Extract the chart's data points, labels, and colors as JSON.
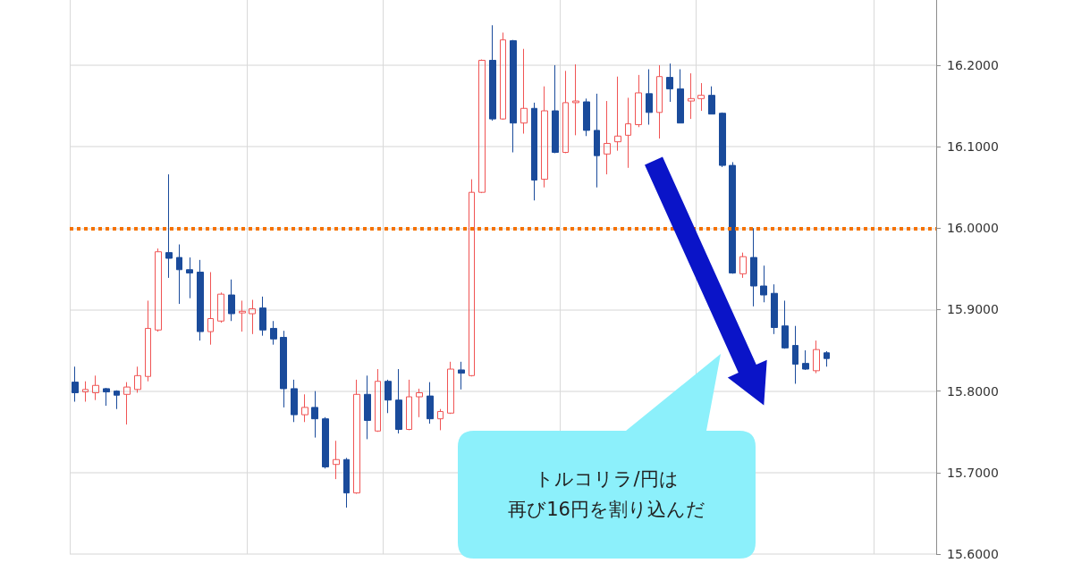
{
  "chart_data": {
    "type": "candlestick",
    "categories": [
      null,
      null,
      null,
      null,
      null,
      null,
      null,
      null,
      null,
      null,
      null,
      null,
      null,
      null,
      null,
      null,
      null,
      null,
      null,
      null,
      null,
      null,
      null,
      null,
      null,
      null,
      null,
      null,
      null,
      null,
      null,
      null,
      null,
      null,
      null,
      null,
      null,
      null,
      null,
      null,
      null,
      null,
      null,
      null,
      null,
      null,
      null,
      null,
      null,
      null,
      null,
      null,
      null,
      null,
      null,
      null,
      null,
      null,
      null,
      null,
      null,
      null,
      null,
      null,
      null,
      null,
      null,
      null,
      null,
      null,
      null,
      null,
      null,
      null,
      null,
      null,
      null,
      null,
      null,
      null,
      null,
      null,
      null
    ],
    "ohlc": [
      [
        15.811,
        15.83,
        15.787,
        15.798
      ],
      [
        15.799,
        15.812,
        15.787,
        15.802
      ],
      [
        15.798,
        15.819,
        15.789,
        15.807
      ],
      [
        15.803,
        15.804,
        15.782,
        15.799
      ],
      [
        15.8,
        15.801,
        15.778,
        15.795
      ],
      [
        15.796,
        15.811,
        15.759,
        15.805
      ],
      [
        15.802,
        15.83,
        15.798,
        15.819
      ],
      [
        15.818,
        15.911,
        15.812,
        15.877
      ],
      [
        15.875,
        15.975,
        15.873,
        15.971
      ],
      [
        15.97,
        16.066,
        15.939,
        15.963
      ],
      [
        15.964,
        15.98,
        15.907,
        15.949
      ],
      [
        15.949,
        15.964,
        15.914,
        15.945
      ],
      [
        15.946,
        15.961,
        15.862,
        15.873
      ],
      [
        15.873,
        15.946,
        15.857,
        15.889
      ],
      [
        15.886,
        15.921,
        15.884,
        15.919
      ],
      [
        15.918,
        15.937,
        15.886,
        15.895
      ],
      [
        15.896,
        15.911,
        15.873,
        15.898
      ],
      [
        15.895,
        15.912,
        15.87,
        15.901
      ],
      [
        15.902,
        15.916,
        15.868,
        15.875
      ],
      [
        15.877,
        15.886,
        15.857,
        15.864
      ],
      [
        15.866,
        15.874,
        15.78,
        15.803
      ],
      [
        15.803,
        15.814,
        15.762,
        15.771
      ],
      [
        15.771,
        15.796,
        15.762,
        15.78
      ],
      [
        15.78,
        15.8,
        15.743,
        15.766
      ],
      [
        15.766,
        15.768,
        15.705,
        15.707
      ],
      [
        15.71,
        15.739,
        15.692,
        15.716
      ],
      [
        15.716,
        15.718,
        15.657,
        15.675
      ],
      [
        15.675,
        15.814,
        15.674,
        15.796
      ],
      [
        15.796,
        15.819,
        15.741,
        15.764
      ],
      [
        15.751,
        15.827,
        15.75,
        15.812
      ],
      [
        15.812,
        15.814,
        15.773,
        15.789
      ],
      [
        15.789,
        15.827,
        15.748,
        15.753
      ],
      [
        15.753,
        15.814,
        15.752,
        15.793
      ],
      [
        15.793,
        15.803,
        15.768,
        15.798
      ],
      [
        15.794,
        15.811,
        15.76,
        15.766
      ],
      [
        15.766,
        15.778,
        15.752,
        15.775
      ],
      [
        15.773,
        15.836,
        15.772,
        15.827
      ],
      [
        15.826,
        15.836,
        15.802,
        15.822
      ],
      [
        15.819,
        16.06,
        15.818,
        16.044
      ],
      [
        16.044,
        16.207,
        16.043,
        16.206
      ],
      [
        16.206,
        16.249,
        16.132,
        16.134
      ],
      [
        16.134,
        16.24,
        16.133,
        16.231
      ],
      [
        16.23,
        16.231,
        16.093,
        16.129
      ],
      [
        16.129,
        16.22,
        16.116,
        16.147
      ],
      [
        16.147,
        16.154,
        16.034,
        16.059
      ],
      [
        16.06,
        16.174,
        16.05,
        16.144
      ],
      [
        16.144,
        16.2,
        16.092,
        16.093
      ],
      [
        16.093,
        16.193,
        16.092,
        16.154
      ],
      [
        16.154,
        16.201,
        16.114,
        16.156
      ],
      [
        16.155,
        16.159,
        16.113,
        16.12
      ],
      [
        16.12,
        16.165,
        16.05,
        16.089
      ],
      [
        16.091,
        16.156,
        16.066,
        16.104
      ],
      [
        16.106,
        16.186,
        16.095,
        16.113
      ],
      [
        16.114,
        16.16,
        16.074,
        16.128
      ],
      [
        16.127,
        16.188,
        16.124,
        16.166
      ],
      [
        16.165,
        16.195,
        16.127,
        16.142
      ],
      [
        16.142,
        16.2,
        16.11,
        16.186
      ],
      [
        16.185,
        16.202,
        16.155,
        16.171
      ],
      [
        16.171,
        16.195,
        16.129,
        16.129
      ],
      [
        16.156,
        16.19,
        16.134,
        16.159
      ],
      [
        16.159,
        16.178,
        16.144,
        16.163
      ],
      [
        16.163,
        16.174,
        16.14,
        16.14
      ],
      [
        16.141,
        16.142,
        16.075,
        16.077
      ],
      [
        16.077,
        16.081,
        15.944,
        15.945
      ],
      [
        15.944,
        15.97,
        15.939,
        15.965
      ],
      [
        15.964,
        16.0,
        15.904,
        15.929
      ],
      [
        15.929,
        15.954,
        15.909,
        15.918
      ],
      [
        15.92,
        15.931,
        15.87,
        15.878
      ],
      [
        15.88,
        15.911,
        15.852,
        15.853
      ],
      [
        15.856,
        15.88,
        15.809,
        15.833
      ],
      [
        15.834,
        15.85,
        15.826,
        15.827
      ],
      [
        15.825,
        15.862,
        15.822,
        15.851
      ],
      [
        15.847,
        15.849,
        15.83,
        15.84
      ],
      null,
      null,
      null,
      null,
      null,
      null,
      null,
      null,
      null,
      null
    ],
    "colors": [
      "#1a4b9b",
      "#f05454",
      "#f05454",
      "#1a4b9b",
      "#1a4b9b",
      "#f05454",
      "#f05454",
      "#f05454",
      "#f05454",
      "#1a4b9b",
      "#1a4b9b",
      "#1a4b9b",
      "#1a4b9b",
      "#f05454",
      "#f05454",
      "#1a4b9b",
      "#f05454",
      "#f05454",
      "#1a4b9b",
      "#1a4b9b",
      "#1a4b9b",
      "#1a4b9b",
      "#f05454",
      "#1a4b9b",
      "#1a4b9b",
      "#f05454",
      "#1a4b9b",
      "#f05454",
      "#1a4b9b",
      "#f05454",
      "#1a4b9b",
      "#1a4b9b",
      "#f05454",
      "#f05454",
      "#1a4b9b",
      "#f05454",
      "#f05454",
      "#1a4b9b",
      "#f05454",
      "#f05454",
      "#1a4b9b",
      "#f05454",
      "#1a4b9b",
      "#f05454",
      "#1a4b9b",
      "#f05454",
      "#1a4b9b",
      "#f05454",
      "#f05454",
      "#1a4b9b",
      "#1a4b9b",
      "#f05454",
      "#f05454",
      "#f05454",
      "#f05454",
      "#1a4b9b",
      "#f05454",
      "#1a4b9b",
      "#1a4b9b",
      "#f05454",
      "#f05454",
      "#1a4b9b",
      "#1a4b9b",
      "#1a4b9b",
      "#f05454",
      "#1a4b9b",
      "#1a4b9b",
      "#1a4b9b",
      "#1a4b9b",
      "#1a4b9b",
      "#1a4b9b",
      "#f05454",
      "#1a4b9b",
      null,
      null,
      null,
      null,
      null,
      null,
      null,
      null,
      null,
      null
    ],
    "ylim": [
      15.6,
      16.28
    ],
    "yticks": [
      {
        "value": 15.6,
        "label": "15.6000"
      },
      {
        "value": 15.7,
        "label": "15.7000"
      },
      {
        "value": 15.8,
        "label": "15.8000"
      },
      {
        "value": 15.9,
        "label": "15.9000"
      },
      {
        "value": 16.0,
        "label": "16.0000"
      },
      {
        "value": 16.1,
        "label": "16.1000"
      },
      {
        "value": 16.2,
        "label": "16.2000"
      }
    ],
    "grid": true,
    "tick_labels": "y",
    "ref_lines": [
      {
        "axis": "y",
        "value": 16.0,
        "color": "#f57200",
        "line_style": "dotted"
      }
    ],
    "annotations": [
      "トルコリラ/円は",
      "再び16円を割り込んだ"
    ]
  }
}
